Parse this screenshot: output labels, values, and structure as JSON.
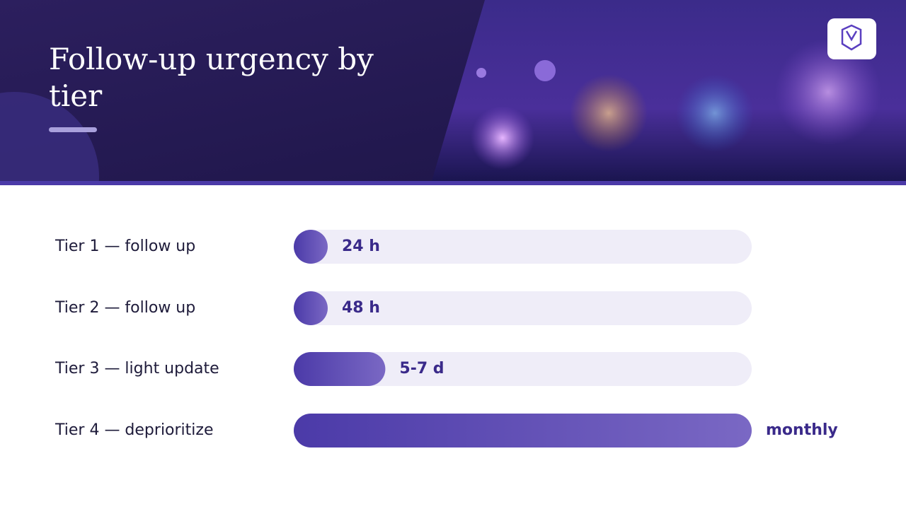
{
  "header": {
    "title": "Follow-up urgency by tier"
  },
  "chart_data": {
    "type": "bar",
    "orientation": "horizontal",
    "categories": [
      "Tier 1 — follow up",
      "Tier 2 — follow up",
      "Tier 3 — light update",
      "Tier 4 — deprioritize"
    ],
    "values": [
      24,
      48,
      144,
      720
    ],
    "value_labels": [
      "24 h",
      "48 h",
      "5-7 d",
      "monthly"
    ],
    "xlim": [
      0,
      720
    ],
    "color": "#4b3aa8",
    "track_color": "#efedf8"
  }
}
